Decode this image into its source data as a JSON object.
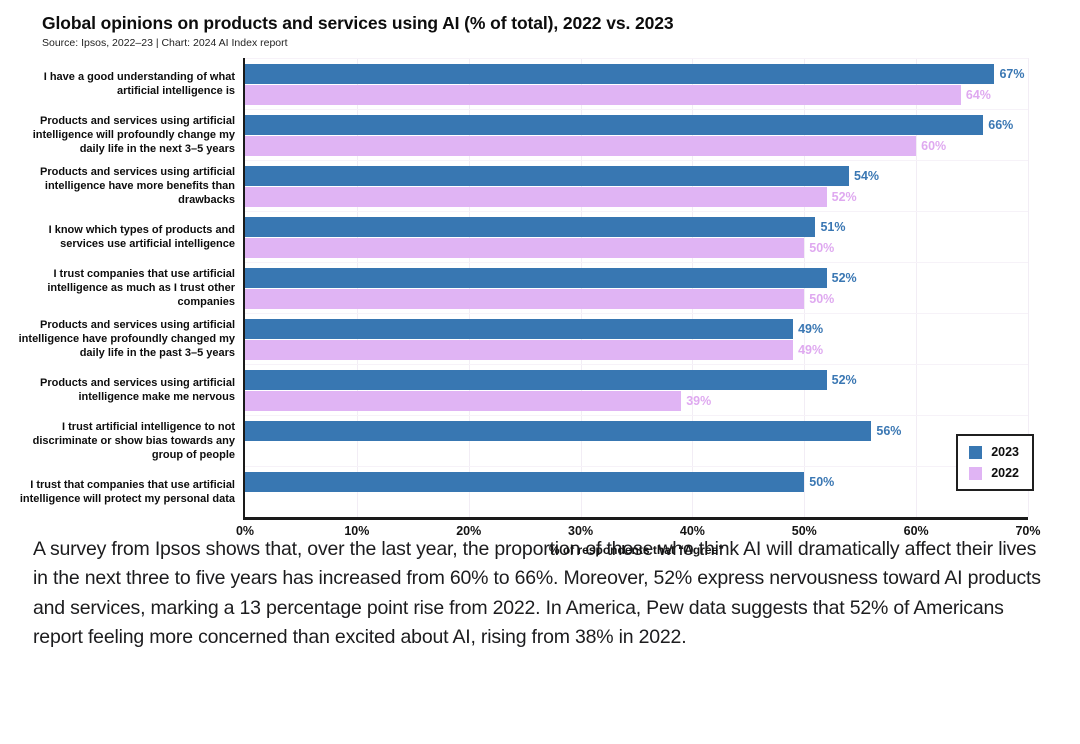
{
  "chart": {
    "title": "Global opinions on products and services using AI (% of total), 2022 vs. 2023",
    "source": "Source: Ipsos, 2022–23 | Chart: 2024 AI Index report"
  },
  "chart_data": {
    "type": "bar",
    "orientation": "horizontal",
    "title": "Global opinions on products and services using AI (% of total), 2022 vs. 2023",
    "categories": [
      "I have a good understanding of what artificial intelligence is",
      "Products and services using artificial intelligence will profoundly change my daily life in the next 3–5 years",
      "Products and services using artificial intelligence have more benefits than drawbacks",
      "I know which types of products and services use artificial intelligence",
      "I trust companies that use artificial intelligence as much as I trust other companies",
      "Products and services using artificial intelligence have profoundly changed my daily life in the past 3–5 years",
      "Products and services using artificial intelligence make me nervous",
      "I trust artificial intelligence to not discriminate or show bias towards any group of people",
      "I trust that companies that use artificial intelligence will protect my personal data"
    ],
    "series": [
      {
        "name": "2023",
        "color": "#3877b2",
        "label_color": "#3a77b3",
        "values": [
          67,
          66,
          54,
          51,
          52,
          49,
          52,
          56,
          50
        ]
      },
      {
        "name": "2022",
        "color": "#e0b4f4",
        "label_color": "#dfa9f0",
        "values": [
          64,
          60,
          52,
          50,
          50,
          49,
          39,
          null,
          null
        ]
      }
    ],
    "value_suffix": "%",
    "xlim": [
      0,
      70
    ],
    "xticks": [
      "0%",
      "10%",
      "20%",
      "30%",
      "40%",
      "50%",
      "60%",
      "70%"
    ],
    "xlabel": "% of respondents that “Agree”",
    "legend_position": "lower right",
    "grid": true
  },
  "caption": {
    "text": "A survey from Ipsos shows that, over the last year, the proportion of those who think AI will dramatically affect their lives in the next three to five years has increased from 60% to 66%. Moreover, 52% express nervousness toward AI products and services, marking a 13 percentage point rise from 2022. In America, Pew data suggests that 52% of Americans report feeling more concerned than excited about AI, rising from 38% in 2022."
  },
  "colors": {
    "series_2023": "#3877b2",
    "series_2022": "#e0b4f4",
    "axis": "#1a1a1a",
    "gridline": "#f2edf5"
  }
}
